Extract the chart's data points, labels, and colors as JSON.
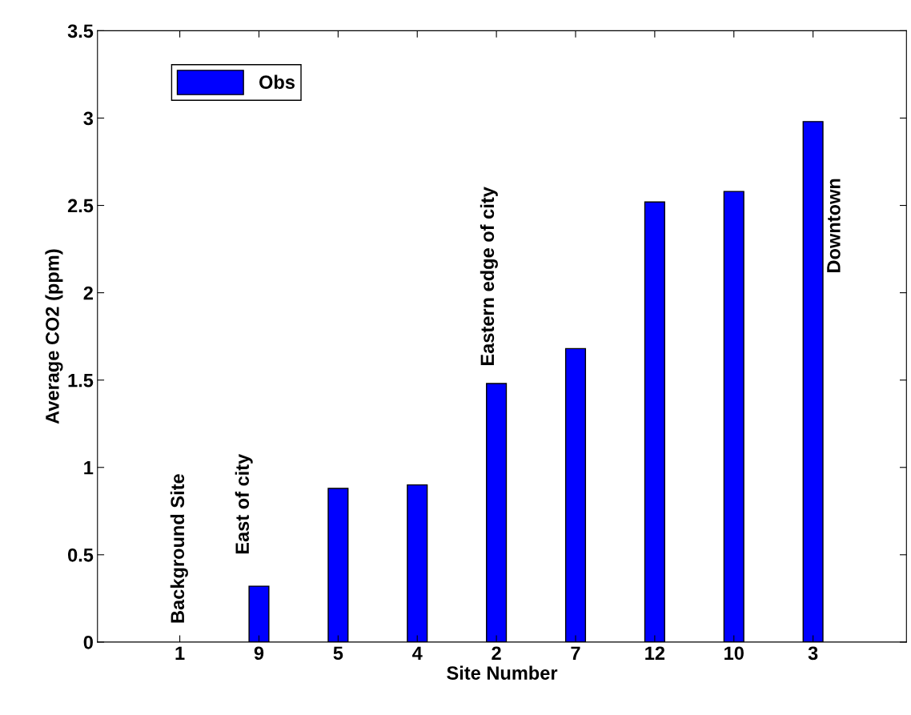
{
  "chart_data": {
    "type": "bar",
    "xlabel": "Site Number",
    "ylabel": "Average CO2 (ppm)",
    "categories": [
      "1",
      "9",
      "5",
      "4",
      "2",
      "7",
      "12",
      "10",
      "3"
    ],
    "series": [
      {
        "name": "Obs",
        "color": "#0000ff",
        "values": [
          0,
          0.32,
          0.88,
          0.9,
          1.48,
          1.68,
          2.52,
          2.58,
          2.98
        ]
      }
    ],
    "ylim": [
      0,
      3.5
    ],
    "yticks": [
      0,
      0.5,
      1,
      1.5,
      2,
      2.5,
      3,
      3.5
    ],
    "grid": false,
    "legend": "top left",
    "annotations": [
      "Background Site",
      "East of city",
      "Eastern edge of city",
      "Downtown"
    ]
  }
}
